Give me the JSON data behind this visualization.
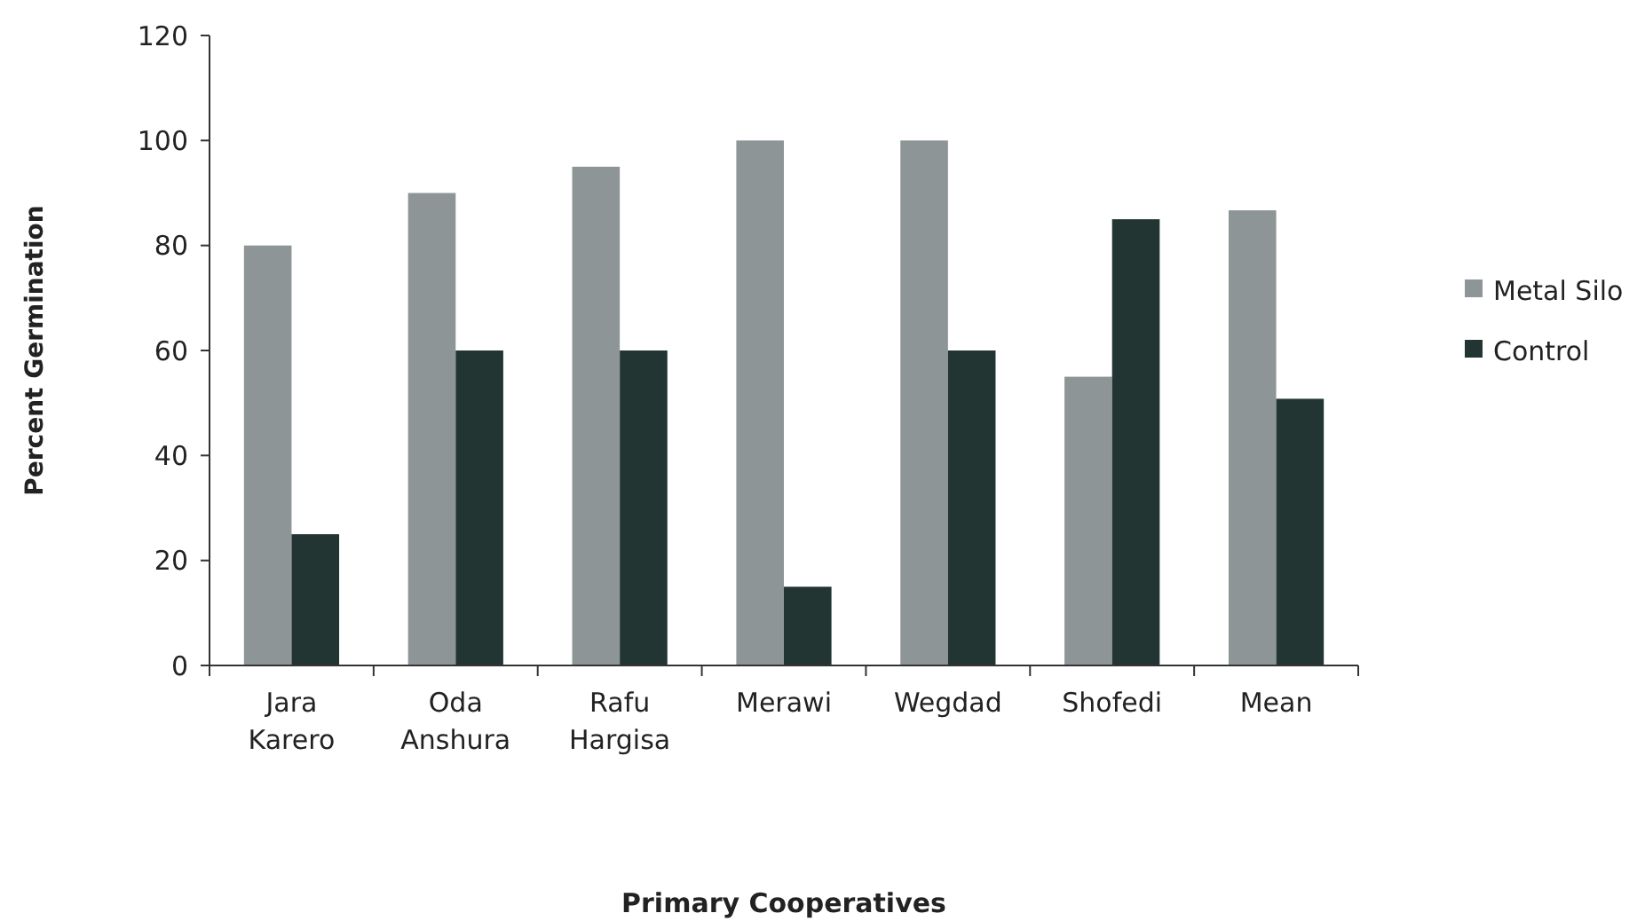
{
  "chart_data": {
    "type": "bar",
    "xlabel": "Primary Cooperatives",
    "ylabel": "Percent Germination",
    "categories": [
      "Jara Karero",
      "Oda Anshura",
      "Rafu Hargisa",
      "Merawi",
      "Wegdad",
      "Shofedi",
      "Mean"
    ],
    "series": [
      {
        "name": "Metal Silo",
        "color": "#8e9596",
        "values": [
          80,
          90,
          95,
          100,
          100,
          55,
          86.7
        ]
      },
      {
        "name": "Control",
        "color": "#223532",
        "values": [
          25,
          60,
          60,
          15,
          60,
          85,
          50.8
        ]
      }
    ],
    "ylim": [
      0,
      120
    ],
    "yticks": [
      0,
      20,
      40,
      60,
      80,
      100,
      120
    ],
    "grid": false,
    "legend": "right"
  }
}
